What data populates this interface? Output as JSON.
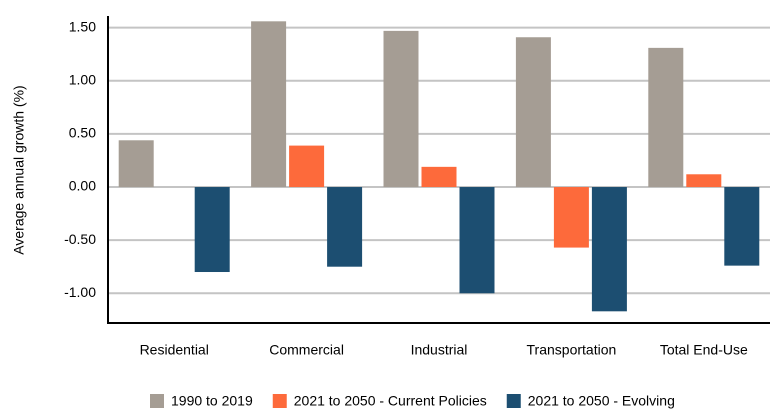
{
  "chart_data": {
    "type": "bar",
    "y_label": "Average annual growth (%)",
    "categories": [
      "Residential",
      "Commercial",
      "Industrial",
      "Transportation",
      "Total End-Use"
    ],
    "series": [
      {
        "name": "1990 to 2019",
        "color": "#a59d94",
        "values": [
          0.44,
          1.56,
          1.47,
          1.41,
          1.31
        ]
      },
      {
        "name": "2021 to 2050 - Current Policies",
        "color": "#fd6a3b",
        "values": [
          0.0,
          0.39,
          0.19,
          -0.57,
          0.12
        ]
      },
      {
        "name": "2021 to 2050 - Evolving",
        "color": "#1c4e71",
        "values": [
          -0.8,
          -0.75,
          -1.0,
          -1.17,
          -0.74
        ]
      }
    ],
    "ylim": [
      -1.28,
      1.61
    ],
    "yticks": [
      {
        "value": -1,
        "label": "-1.00"
      },
      {
        "value": -0.5,
        "label": "-0.50"
      },
      {
        "value": 0,
        "label": "0.00"
      },
      {
        "value": 0.5,
        "label": "0.50"
      },
      {
        "value": 1,
        "label": "1.00"
      },
      {
        "value": 1.5,
        "label": "1.50"
      }
    ],
    "grid": true
  }
}
